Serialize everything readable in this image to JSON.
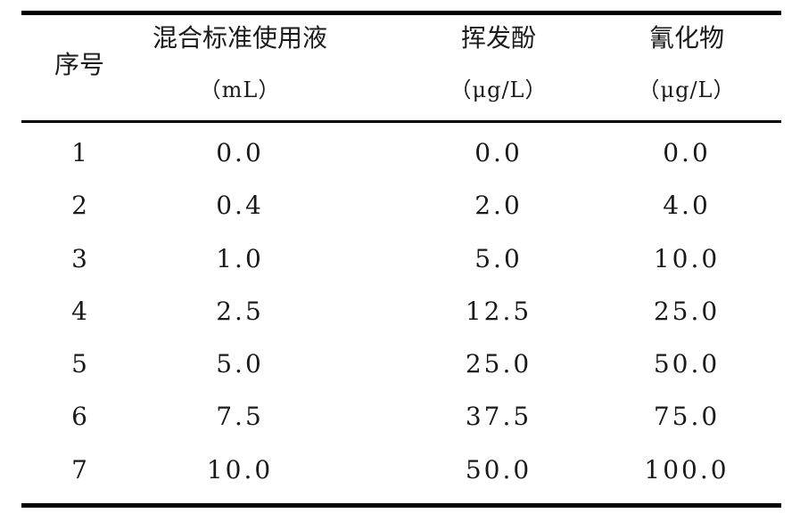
{
  "table": {
    "headers": {
      "seq": "序号",
      "mix_title": "混合标准使用液",
      "mix_unit": "（mL）",
      "phenol_title": "挥发酚",
      "phenol_unit": "（μg/L）",
      "cyanide_title": "氰化物",
      "cyanide_unit": "（μg/L）"
    },
    "rows": [
      {
        "seq": "1",
        "mix": "0.0",
        "phenol": "0.0",
        "cyanide": "0.0"
      },
      {
        "seq": "2",
        "mix": "0.4",
        "phenol": "2.0",
        "cyanide": "4.0"
      },
      {
        "seq": "3",
        "mix": "1.0",
        "phenol": "5.0",
        "cyanide": "10.0"
      },
      {
        "seq": "4",
        "mix": "2.5",
        "phenol": "12.5",
        "cyanide": "25.0"
      },
      {
        "seq": "5",
        "mix": "5.0",
        "phenol": "25.0",
        "cyanide": "50.0"
      },
      {
        "seq": "6",
        "mix": "7.5",
        "phenol": "37.5",
        "cyanide": "75.0"
      },
      {
        "seq": "7",
        "mix": "10.0",
        "phenol": "50.0",
        "cyanide": "100.0"
      }
    ]
  }
}
